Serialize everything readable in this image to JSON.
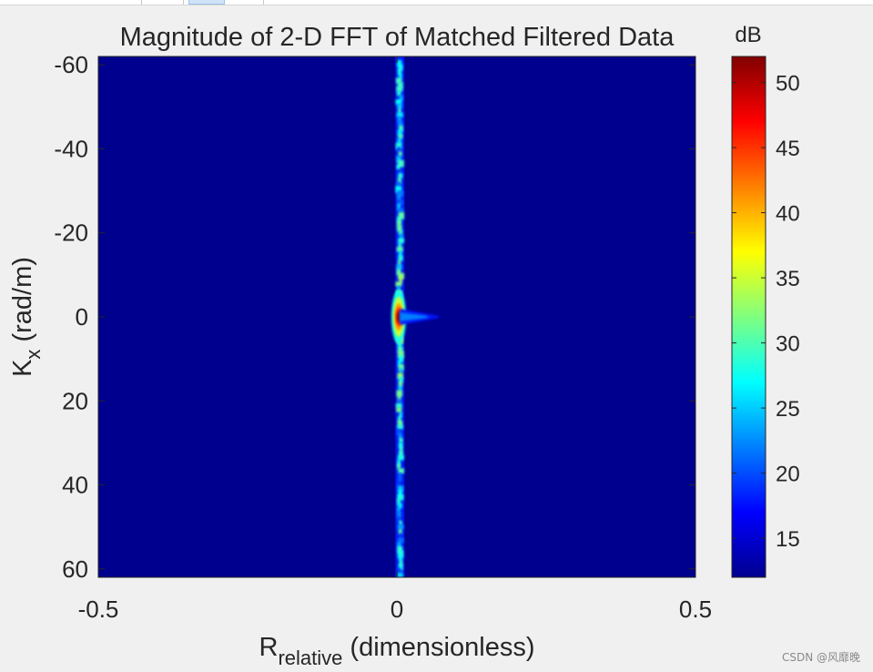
{
  "chart_data": {
    "type": "heatmap",
    "title": "Magnitude of 2-D FFT of Matched Filtered Data",
    "xlabel_main": "R",
    "xlabel_sub": "relative",
    "xlabel_rest": " (dimensionless)",
    "ylabel_main": "K",
    "ylabel_sub": "x",
    "ylabel_rest": " (rad/m)",
    "xlim": [
      -0.5,
      0.5
    ],
    "ylim": [
      -62,
      62
    ],
    "y_reversed": true,
    "xticks": [
      -0.5,
      0,
      0.5
    ],
    "xtick_labels": [
      "-0.5",
      "0",
      "0.5"
    ],
    "yticks": [
      -60,
      -40,
      -20,
      0,
      20,
      40,
      60
    ],
    "ytick_labels": [
      "-60",
      "-40",
      "-20",
      "0",
      "20",
      "40",
      "60"
    ],
    "colormap": "jet",
    "colorbar": {
      "label": "dB",
      "range": [
        12,
        52
      ],
      "ticks": [
        15,
        20,
        25,
        30,
        35,
        40,
        45,
        50
      ],
      "tick_labels": [
        "15",
        "20",
        "25",
        "30",
        "35",
        "40",
        "45",
        "50"
      ]
    },
    "background_level_db": 12,
    "features": [
      {
        "kind": "vertical-streak",
        "x": 0.005,
        "y_range": [
          -62,
          62
        ],
        "level_db": 28
      },
      {
        "kind": "peak",
        "x": 0.003,
        "y": 0,
        "level_db": 52
      },
      {
        "kind": "horizontal-tail",
        "x_range": [
          0.005,
          0.07
        ],
        "y": 0,
        "level_db": 22
      }
    ],
    "grid": false
  },
  "watermark": "CSDN @风靡晚"
}
